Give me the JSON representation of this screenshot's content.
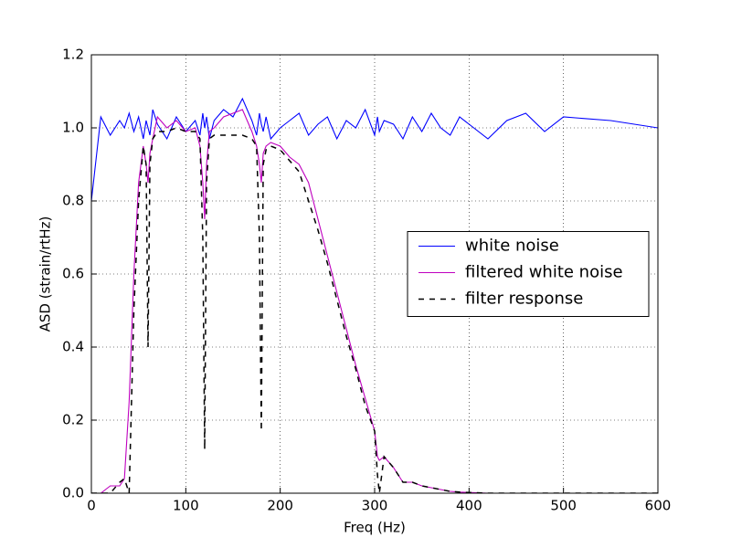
{
  "chart_data": {
    "type": "line",
    "xlabel": "Freq (Hz)",
    "ylabel": "ASD (strain/rtHz)",
    "xlim": [
      0,
      600
    ],
    "ylim": [
      0,
      1.2
    ],
    "xticks": [
      0,
      100,
      200,
      300,
      400,
      500,
      600
    ],
    "yticks": [
      {
        "value": 0,
        "label": "0.0"
      },
      0.2,
      0.4,
      0.6,
      0.8,
      {
        "value": 1,
        "label": "1.0"
      },
      1.2
    ],
    "grid": true,
    "legend": "center right",
    "x": [
      0,
      10,
      20,
      30,
      35,
      40,
      45,
      50,
      55,
      58,
      60,
      62,
      65,
      70,
      80,
      90,
      100,
      110,
      115,
      118,
      120,
      122,
      125,
      130,
      140,
      150,
      160,
      170,
      175,
      178,
      180,
      182,
      185,
      190,
      200,
      210,
      220,
      230,
      240,
      250,
      260,
      270,
      280,
      290,
      300,
      303,
      305,
      310,
      320,
      330,
      340,
      350,
      360,
      370,
      380,
      390,
      400,
      420,
      440,
      460,
      480,
      500,
      550,
      600
    ],
    "series": [
      {
        "name": "white noise",
        "color": "#0000ff",
        "linestyle": "solid",
        "values": [
          0.8,
          1.03,
          0.98,
          1.02,
          1.0,
          1.04,
          0.99,
          1.03,
          0.97,
          1.02,
          1.0,
          0.98,
          1.05,
          1.01,
          0.97,
          1.03,
          0.99,
          1.02,
          0.98,
          1.04,
          1.0,
          1.03,
          0.97,
          1.02,
          1.05,
          1.03,
          1.08,
          1.02,
          0.98,
          1.04,
          1.01,
          0.99,
          1.03,
          0.97,
          1.0,
          1.02,
          1.04,
          0.98,
          1.01,
          1.03,
          0.97,
          1.02,
          1.0,
          1.05,
          0.98,
          1.03,
          0.99,
          1.02,
          1.01,
          0.97,
          1.03,
          0.99,
          1.04,
          1.0,
          0.98,
          1.03,
          1.01,
          0.97,
          1.02,
          1.04,
          0.99,
          1.03,
          1.02,
          1.0
        ]
      },
      {
        "name": "filtered white noise",
        "color": "#bf00bf",
        "linestyle": "solid",
        "values": [
          0,
          0,
          0.02,
          0.02,
          0.04,
          0.25,
          0.6,
          0.85,
          0.95,
          0.9,
          0.85,
          0.93,
          0.97,
          1.03,
          1.0,
          1.02,
          0.99,
          1.0,
          0.95,
          0.85,
          0.75,
          0.9,
          0.99,
          1.0,
          1.03,
          1.04,
          1.05,
          0.99,
          0.95,
          0.9,
          0.85,
          0.93,
          0.95,
          0.96,
          0.95,
          0.92,
          0.9,
          0.85,
          0.75,
          0.65,
          0.55,
          0.45,
          0.35,
          0.26,
          0.17,
          0.1,
          0.09,
          0.1,
          0.07,
          0.03,
          0.03,
          0.02,
          0.015,
          0.01,
          0.005,
          0.003,
          0.002,
          0,
          0,
          0,
          0,
          0,
          0,
          0
        ]
      },
      {
        "name": "filter response",
        "color": "#000000",
        "linestyle": "dashed",
        "values": [
          0,
          0,
          0,
          0.03,
          0.04,
          0,
          0.5,
          0.8,
          0.95,
          0.9,
          0.4,
          0.9,
          0.97,
          0.99,
          0.99,
          1.0,
          0.99,
          0.99,
          0.97,
          0.7,
          0.12,
          0.85,
          0.97,
          0.98,
          0.98,
          0.98,
          0.98,
          0.97,
          0.95,
          0.7,
          0.17,
          0.9,
          0.94,
          0.95,
          0.94,
          0.91,
          0.88,
          0.8,
          0.72,
          0.63,
          0.53,
          0.43,
          0.34,
          0.24,
          0.17,
          0.05,
          0,
          0.1,
          0.07,
          0.03,
          0.03,
          0.02,
          0.015,
          0.01,
          0.005,
          0.003,
          0.002,
          0,
          0,
          0,
          0,
          0,
          0,
          0
        ]
      }
    ]
  }
}
